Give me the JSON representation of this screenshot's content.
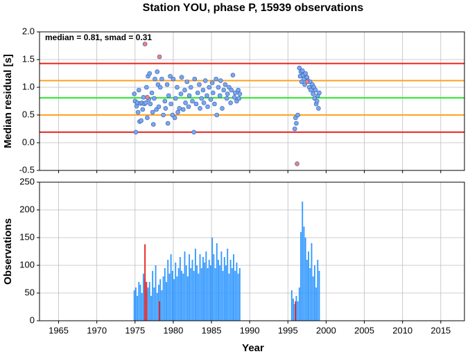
{
  "chart_data": [
    {
      "type": "scatter",
      "title": "Station YOU, phase P, 15939 observations",
      "annotation": "median = 0.81, smad = 0.31",
      "y_label": "Median residual [s]",
      "xlim": [
        1962.5,
        2018.1
      ],
      "xticks": [
        1965,
        1970,
        1975,
        1980,
        1985,
        1990,
        1995,
        2000,
        2005,
        2010,
        2015
      ],
      "ylim": [
        -0.5,
        2.0
      ],
      "yticks": [
        {
          "value": 2,
          "label": "2.0"
        },
        1.5,
        {
          "value": 1,
          "label": "1.0"
        },
        0.5,
        {
          "value": 0,
          "label": "0.0"
        },
        -0.5
      ],
      "grid": true,
      "hlines": [
        {
          "value": 1.43,
          "color": "#e8201c"
        },
        {
          "value": 0.19,
          "color": "#e8201c"
        },
        {
          "value": 1.12,
          "color": "#ffa320"
        },
        {
          "value": 0.5,
          "color": "#ffa320"
        },
        {
          "value": 0.81,
          "color": "#22e822"
        }
      ],
      "series": [
        {
          "color": "#78a8f0",
          "x": [
            1974.9,
            1975.0,
            1975.1,
            1975.2,
            1975.3,
            1975.4,
            1975.5,
            1975.6,
            1975.7,
            1975.8,
            1975.9,
            1976.0,
            1976.1,
            1976.2,
            1976.4,
            1976.5,
            1976.6,
            1976.7,
            1976.8,
            1976.9,
            1977.0,
            1977.2,
            1977.3,
            1977.4,
            1977.5,
            1977.6,
            1977.8,
            1977.9,
            1978.0,
            1978.1,
            1978.3,
            1978.5,
            1978.7,
            1978.9,
            1979.0,
            1979.2,
            1979.3,
            1979.4,
            1979.6,
            1979.7,
            1979.9,
            1980.0,
            1980.2,
            1980.3,
            1980.5,
            1980.6,
            1980.8,
            1981.0,
            1981.1,
            1981.3,
            1981.5,
            1981.6,
            1981.8,
            1982.0,
            1982.1,
            1982.3,
            1982.5,
            1982.7,
            1982.8,
            1983.0,
            1983.2,
            1983.4,
            1983.5,
            1983.7,
            1983.9,
            1984.0,
            1984.2,
            1984.4,
            1984.5,
            1984.7,
            1984.9,
            1985.1,
            1985.2,
            1985.4,
            1985.6,
            1985.7,
            1985.9,
            1986.1,
            1986.2,
            1986.4,
            1986.6,
            1986.8,
            1987.0,
            1987.1,
            1987.3,
            1987.5,
            1987.6,
            1987.8,
            1988.0,
            1988.1,
            1988.3,
            1988.5,
            1988.6,
            1988.7,
            1995.9,
            1996.0,
            1996.1,
            1996.3,
            1996.5,
            1996.6,
            1996.7,
            1996.8,
            1996.9,
            1997.0,
            1997.1,
            1997.2,
            1997.3,
            1997.5,
            1997.6,
            1997.8,
            1997.9,
            1998.0,
            1998.2,
            1998.3,
            1998.4,
            1998.5,
            1998.6,
            1998.7,
            1998.8,
            1998.9,
            1999.0,
            1999.1
          ],
          "values": [
            0.88,
            0.75,
            0.19,
            0.66,
            0.72,
            0.55,
            0.95,
            0.38,
            0.71,
            0.4,
            0.72,
            0.6,
            0.82,
            0.7,
            0.72,
            1.0,
            0.45,
            1.2,
            0.78,
            1.25,
            0.7,
            0.9,
            0.55,
            0.33,
            0.8,
            1.15,
            0.6,
            1.28,
            1.05,
            0.65,
            1.0,
            1.15,
            0.5,
            0.75,
            0.62,
            1.05,
            0.35,
            0.85,
            1.2,
            0.7,
            0.5,
            1.15,
            0.45,
            0.8,
            1.0,
            0.55,
            0.62,
            0.88,
            1.18,
            0.6,
            0.95,
            0.72,
            1.1,
            0.65,
            0.85,
            1.0,
            0.75,
            0.19,
            1.15,
            0.7,
            0.9,
            1.05,
            0.62,
            0.8,
            0.95,
            0.72,
            1.12,
            0.85,
            0.65,
            1.0,
            0.78,
            1.08,
            0.9,
            0.7,
            1.15,
            0.5,
            1.0,
            0.85,
            1.12,
            0.62,
            0.95,
            1.05,
            0.8,
            0.88,
            1.0,
            0.72,
            0.95,
            1.22,
            0.82,
            0.9,
            0.75,
            0.95,
            0.8,
            0.88,
            0.25,
            0.45,
            0.35,
            0.5,
            1.35,
            1.2,
            1.28,
            1.1,
            1.3,
            1.22,
            1.15,
            1.05,
            1.25,
            1.18,
            1.12,
            1.0,
            1.1,
            0.95,
            1.05,
            0.88,
            1.0,
            0.8,
            0.95,
            0.7,
            0.75,
            0.85,
            0.62,
            0.9
          ]
        },
        {
          "color": "#f08080",
          "x": [
            1976.3,
            1978.2,
            1976.6,
            1996.2,
            1997.5
          ],
          "values": [
            1.78,
            1.55,
            0.82,
            -0.38,
            1.1
          ]
        }
      ]
    },
    {
      "type": "bar",
      "x_label": "Year",
      "y_label": "Observations",
      "xlim": [
        1962.5,
        2018.1
      ],
      "xticks": [
        1965,
        1970,
        1975,
        1980,
        1985,
        1990,
        1995,
        2000,
        2005,
        2010,
        2015
      ],
      "ylim": [
        0,
        250
      ],
      "yticks": [
        0,
        50,
        100,
        150,
        200,
        250
      ],
      "grid": true,
      "series": [
        {
          "color": "#3399ff",
          "x": [
            1974.9,
            1975.1,
            1975.3,
            1975.5,
            1975.7,
            1975.9,
            1976.1,
            1976.3,
            1976.5,
            1976.7,
            1976.9,
            1977.1,
            1977.3,
            1977.5,
            1977.7,
            1977.9,
            1978.1,
            1978.3,
            1978.5,
            1978.7,
            1978.9,
            1979.1,
            1979.3,
            1979.5,
            1979.7,
            1979.9,
            1980.1,
            1980.3,
            1980.5,
            1980.7,
            1980.9,
            1981.1,
            1981.3,
            1981.5,
            1981.7,
            1981.9,
            1982.1,
            1982.3,
            1982.5,
            1982.7,
            1982.9,
            1983.1,
            1983.3,
            1983.5,
            1983.7,
            1983.9,
            1984.1,
            1984.3,
            1984.5,
            1984.7,
            1984.9,
            1985.1,
            1985.3,
            1985.5,
            1985.7,
            1985.9,
            1986.1,
            1986.3,
            1986.5,
            1986.7,
            1986.9,
            1987.1,
            1987.3,
            1987.5,
            1987.7,
            1987.9,
            1988.1,
            1988.3,
            1988.5,
            1988.7,
            1995.5,
            1995.7,
            1995.9,
            1996.1,
            1996.3,
            1996.5,
            1996.7,
            1996.9,
            1997.1,
            1997.3,
            1997.5,
            1997.7,
            1997.9,
            1998.1,
            1998.3,
            1998.5,
            1998.7,
            1998.9,
            1999.1
          ],
          "values": [
            55,
            60,
            45,
            70,
            65,
            50,
            85,
            75,
            55,
            60,
            70,
            45,
            90,
            60,
            100,
            50,
            65,
            75,
            55,
            80,
            95,
            70,
            110,
            85,
            120,
            90,
            75,
            105,
            80,
            95,
            115,
            90,
            85,
            125,
            100,
            80,
            120,
            95,
            110,
            90,
            130,
            100,
            85,
            120,
            95,
            115,
            105,
            125,
            95,
            110,
            100,
            150,
            120,
            95,
            140,
            110,
            100,
            125,
            90,
            115,
            100,
            130,
            85,
            110,
            95,
            120,
            90,
            105,
            85,
            95,
            55,
            40,
            30,
            45,
            35,
            60,
            160,
            215,
            170,
            150,
            110,
            125,
            95,
            140,
            80,
            100,
            60,
            110,
            90
          ]
        },
        {
          "color": "#e8201c",
          "x": [
            1976.3,
            1976.5,
            1978.2,
            1996.0
          ],
          "values": [
            138,
            70,
            35,
            35
          ]
        }
      ]
    }
  ]
}
